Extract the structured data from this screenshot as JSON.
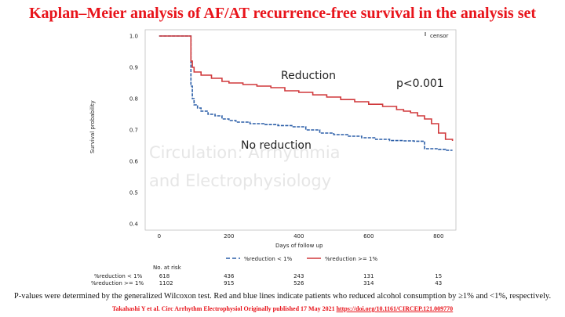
{
  "slide": {
    "title": "Kaplan–Meier analysis of AF/AT recurrence-free survival in the analysis set",
    "caption": "P-values were determined by the generalized Wilcoxon test. Red and blue lines indicate patients who reduced alcohol consumption by ≥1% and <1%, respectively.",
    "citation_text": "Takahashi Y et al. Circ Arrhythm Electrophysiol Originally published 17 May 2021 ",
    "citation_doi": "https://doi.org/10.1161/CIRCEP.121.009770",
    "title_color": "#e8141b"
  },
  "chart_data": {
    "type": "line",
    "step": true,
    "title": "",
    "xlabel": "Days of follow up",
    "ylabel": "Survival probability",
    "xlim": [
      -40,
      850
    ],
    "ylim": [
      0.38,
      1.02
    ],
    "xticks": [
      0,
      200,
      400,
      600,
      800
    ],
    "yticks": [
      0.4,
      0.5,
      0.6,
      0.7,
      0.8,
      0.9,
      1.0
    ],
    "ytick_labels": [
      "0.4",
      "0.5",
      "0.6",
      "0.7",
      "0.8",
      "0.9",
      "1.0"
    ],
    "censor_legend": "censor",
    "series": [
      {
        "name": "%reduction < 1%",
        "color": "#2c5fa8",
        "dash": "dashed",
        "x": [
          0,
          90,
          91,
          95,
          100,
          110,
          120,
          140,
          160,
          180,
          200,
          220,
          260,
          300,
          340,
          380,
          420,
          460,
          500,
          540,
          580,
          620,
          660,
          700,
          730,
          760,
          800,
          820,
          840
        ],
        "y": [
          1.0,
          1.0,
          0.84,
          0.8,
          0.78,
          0.77,
          0.76,
          0.75,
          0.745,
          0.735,
          0.73,
          0.725,
          0.72,
          0.717,
          0.714,
          0.71,
          0.7,
          0.69,
          0.685,
          0.68,
          0.675,
          0.67,
          0.666,
          0.665,
          0.664,
          0.64,
          0.638,
          0.635,
          0.635
        ]
      },
      {
        "name": "%reduction >= 1%",
        "color": "#d0393b",
        "dash": "solid",
        "x": [
          0,
          90,
          91,
          95,
          100,
          120,
          150,
          180,
          200,
          240,
          280,
          320,
          360,
          400,
          440,
          480,
          520,
          560,
          600,
          640,
          680,
          700,
          720,
          740,
          760,
          780,
          800,
          820,
          840
        ],
        "y": [
          1.0,
          1.0,
          0.92,
          0.9,
          0.885,
          0.875,
          0.865,
          0.855,
          0.85,
          0.845,
          0.84,
          0.835,
          0.825,
          0.82,
          0.812,
          0.805,
          0.797,
          0.79,
          0.782,
          0.775,
          0.765,
          0.76,
          0.755,
          0.745,
          0.735,
          0.72,
          0.69,
          0.67,
          0.665
        ]
      }
    ],
    "annotations": [
      "Reduction",
      "No reduction",
      "p<0.001"
    ],
    "at_risk": {
      "title": "No. at risk",
      "rows": [
        {
          "label": "%reduction < 1%",
          "values": [
            "618",
            "436",
            "243",
            "131",
            "15"
          ]
        },
        {
          "label": "%reduction >= 1%",
          "values": [
            "1102",
            "915",
            "526",
            "314",
            "43"
          ]
        }
      ]
    },
    "watermark": [
      "Circulation: Arrhythmia",
      "and Electrophysiology"
    ]
  }
}
